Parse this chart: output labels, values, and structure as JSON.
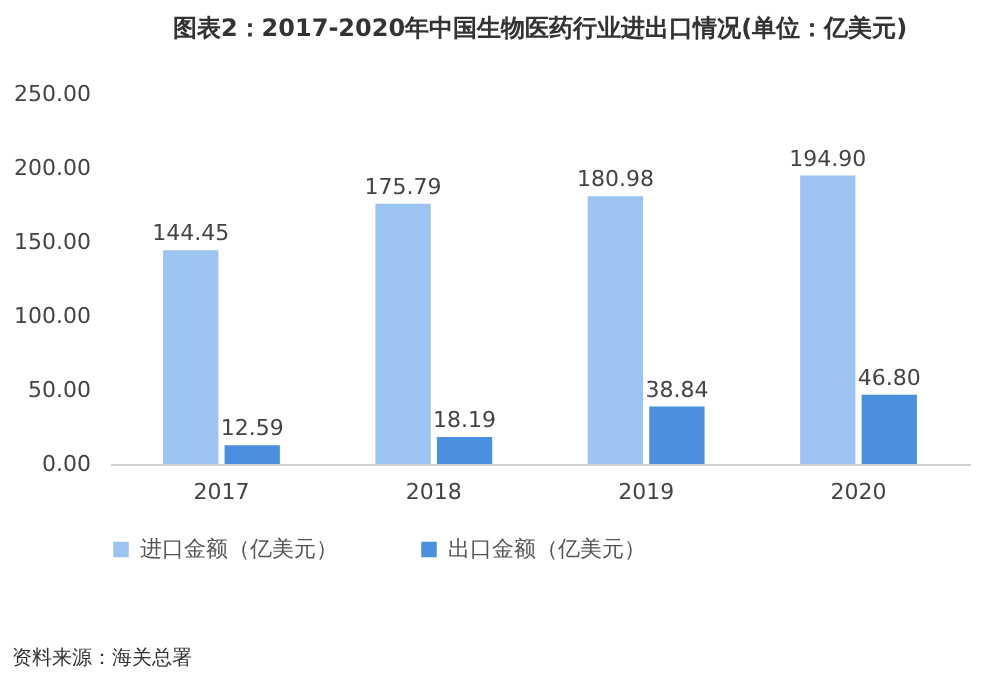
{
  "chart_data": {
    "type": "bar",
    "title": "图表2：2017-2020年中国生物医药行业进出口情况(单位：亿美元)",
    "categories": [
      "2017",
      "2018",
      "2019",
      "2020"
    ],
    "series": [
      {
        "name": "进口金额（亿美元）",
        "color": "#9dc3f0",
        "values": [
          144.45,
          175.79,
          180.98,
          194.9
        ],
        "value_labels": [
          "144.45",
          "175.79",
          "180.98",
          "194.90"
        ]
      },
      {
        "name": "出口金额（亿美元）",
        "color": "#4a8fe0",
        "values": [
          12.59,
          18.19,
          38.84,
          46.8
        ],
        "value_labels": [
          "12.59",
          "18.19",
          "38.84",
          "46.80"
        ]
      }
    ],
    "ylim": [
      0,
      250
    ],
    "yticks": [
      {
        "value": 0,
        "label": "0.00"
      },
      {
        "value": 50,
        "label": "50.00"
      },
      {
        "value": 100,
        "label": "100.00"
      },
      {
        "value": 150,
        "label": "150.00"
      },
      {
        "value": 200,
        "label": "200.00"
      },
      {
        "value": 250,
        "label": "250.00"
      }
    ],
    "grid": false,
    "legend": "bottom",
    "annotations": [
      "资料来源：海关总署"
    ]
  }
}
